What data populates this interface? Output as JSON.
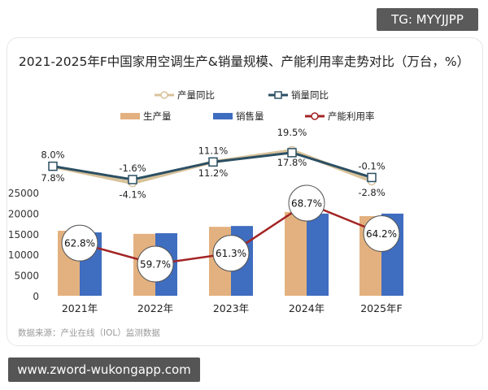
{
  "badge_top": "TG: MYYJJPP",
  "badge_bottom": "www.zword-wukongapp.com",
  "source": "数据来源：产业在线（IOL）监测数据",
  "chart_data": {
    "type": "bar",
    "title": "2021-2025年F中国家用空调生产&销量规模、产能利用率走势对比（万台，%）",
    "categories": [
      "2021年",
      "2022年",
      "2023年",
      "2024年",
      "2025年F"
    ],
    "y_ticks": [
      "0",
      "5000",
      "10000",
      "15000",
      "20000",
      "25000"
    ],
    "ylim": [
      0,
      25000
    ],
    "grid": false,
    "legend_placement": "top",
    "series": [
      {
        "name": "生产量",
        "type": "bar",
        "color": "#e3b17f",
        "values": [
          15750,
          15000,
          16700,
          20300,
          19300
        ]
      },
      {
        "name": "销售量",
        "type": "bar",
        "color": "#3f6dbf",
        "values": [
          15350,
          15150,
          16900,
          19900,
          19900
        ]
      },
      {
        "name": "产量同比",
        "type": "line",
        "color": "#d8c29a",
        "values": [
          7.8,
          -4.1,
          11.2,
          19.5,
          -2.8
        ],
        "labels": [
          "7.8%",
          "-4.1%",
          "11.2%",
          "19.5%",
          "-2.8%"
        ]
      },
      {
        "name": "销量同比",
        "type": "line",
        "color": "#2b4f63",
        "values": [
          8.0,
          -1.6,
          11.1,
          17.8,
          -0.1
        ],
        "labels": [
          "8.0%",
          "-1.6%",
          "11.1%",
          "17.8%",
          "-0.1%"
        ]
      },
      {
        "name": "产能利用率",
        "type": "line",
        "color": "#a32424",
        "values": [
          62.8,
          59.7,
          61.3,
          68.7,
          64.2
        ],
        "labels": [
          "62.8%",
          "59.7%",
          "61.3%",
          "68.7%",
          "64.2%"
        ]
      }
    ]
  }
}
